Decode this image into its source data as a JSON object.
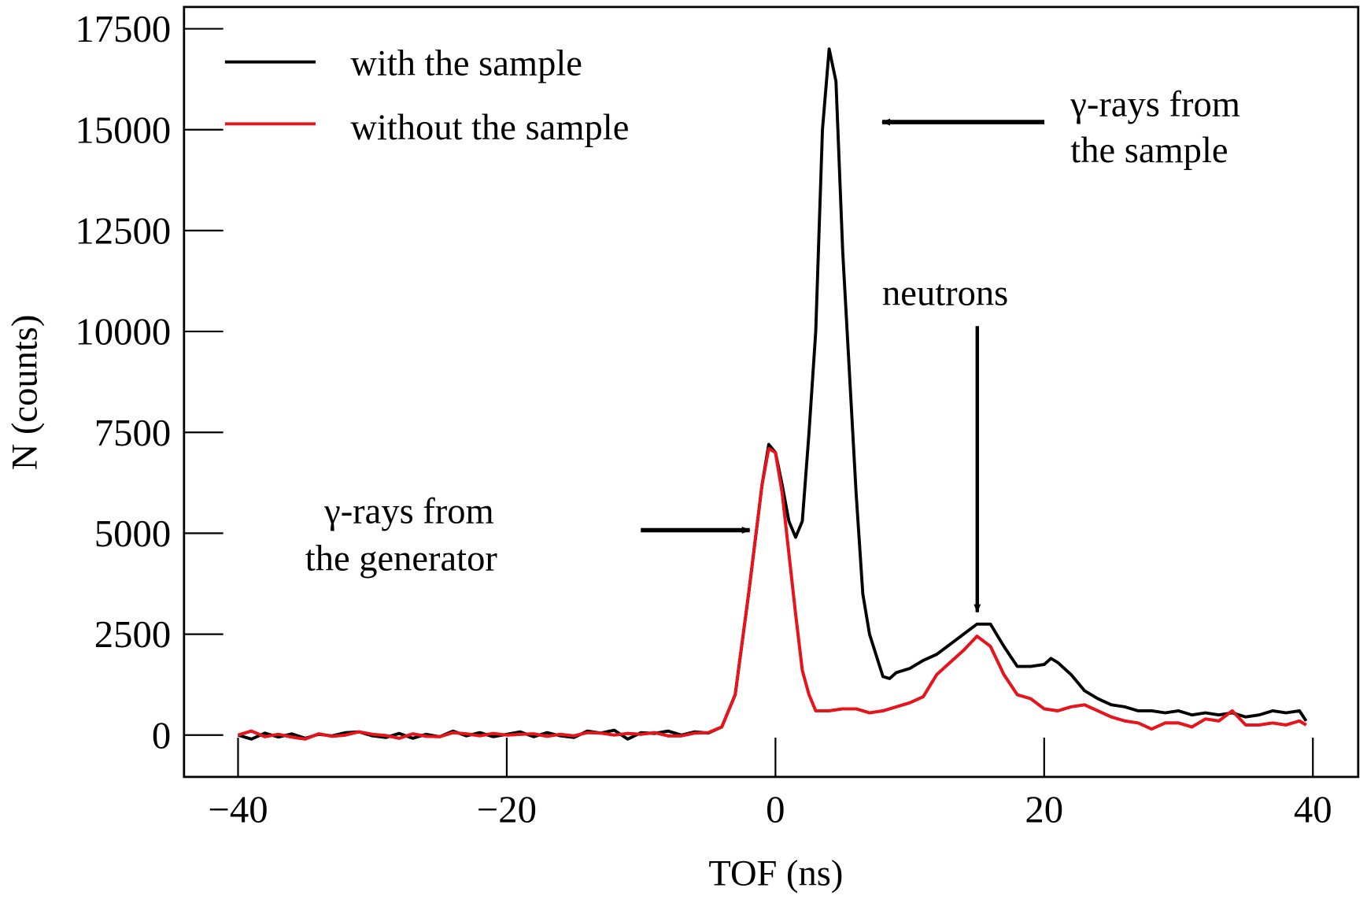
{
  "chart_data": {
    "type": "line",
    "title": "",
    "xlabel": "TOF (ns)",
    "ylabel": "N (counts)",
    "xlim": [
      -44,
      43
    ],
    "ylim": [
      -1050,
      17900
    ],
    "xticks": [
      -40,
      -20,
      0,
      20,
      40
    ],
    "xtick_labels": [
      "−40",
      "−20",
      "0",
      "20",
      "40"
    ],
    "yticks": [
      0,
      2500,
      5000,
      7500,
      10000,
      12500,
      15000,
      17500
    ],
    "ytick_labels": [
      "0",
      "2500",
      "5000",
      "7500",
      "10000",
      "12500",
      "15000",
      "17500"
    ],
    "grid": false,
    "legend_position": "top-left",
    "series": [
      {
        "name": "with the sample",
        "color": "#000000",
        "x": [
          -40,
          -39,
          -38,
          -37,
          -36,
          -35,
          -34,
          -33,
          -32,
          -31,
          -30,
          -29,
          -28,
          -27,
          -26,
          -25,
          -24,
          -23,
          -22,
          -21,
          -20,
          -19,
          -18,
          -17,
          -16,
          -15,
          -14,
          -13,
          -12,
          -11,
          -10,
          -9,
          -8,
          -7,
          -6,
          -5,
          -4,
          -3,
          -2,
          -1,
          -0.5,
          0,
          0.5,
          1,
          1.5,
          2,
          2.5,
          3,
          3.5,
          4,
          4.5,
          5,
          5.5,
          6,
          6.5,
          7,
          8,
          8.5,
          9,
          10,
          11,
          12,
          13,
          14,
          15,
          16,
          17,
          18,
          19,
          20,
          20.5,
          21,
          22,
          23,
          24,
          25,
          26,
          27,
          28,
          29,
          30,
          31,
          32,
          33,
          34,
          35,
          36,
          37,
          38,
          39,
          39.5
        ],
        "y": [
          0,
          -100,
          50,
          -50,
          30,
          -80,
          20,
          -20,
          60,
          80,
          -20,
          -60,
          40,
          -80,
          20,
          -40,
          100,
          -20,
          60,
          -40,
          20,
          80,
          -40,
          60,
          -20,
          -60,
          100,
          50,
          120,
          -100,
          60,
          40,
          100,
          0,
          80,
          50,
          200,
          1000,
          3500,
          6200,
          7200,
          7000,
          6200,
          5300,
          4900,
          5300,
          7500,
          10000,
          15000,
          17000,
          16200,
          12000,
          9000,
          6000,
          3500,
          2500,
          1450,
          1400,
          1550,
          1650,
          1850,
          2000,
          2250,
          2500,
          2750,
          2750,
          2200,
          1700,
          1700,
          1750,
          1900,
          1800,
          1500,
          1100,
          900,
          750,
          700,
          600,
          600,
          550,
          600,
          500,
          550,
          500,
          550,
          450,
          500,
          600,
          550,
          600,
          350
        ]
      },
      {
        "name": "without the sample",
        "color": "#e8141c",
        "x": [
          -40,
          -39,
          -38,
          -37,
          -36,
          -35,
          -34,
          -33,
          -32,
          -31,
          -30,
          -29,
          -28,
          -27,
          -26,
          -25,
          -24,
          -23,
          -22,
          -21,
          -20,
          -19,
          -18,
          -17,
          -16,
          -15,
          -14,
          -13,
          -12,
          -11,
          -10,
          -9,
          -8,
          -7,
          -6,
          -5,
          -4,
          -3,
          -2,
          -1,
          -0.5,
          0,
          0.5,
          1,
          1.5,
          2,
          2.5,
          3,
          4,
          5,
          6,
          7,
          8,
          9,
          10,
          11,
          12,
          13,
          14,
          15,
          16,
          17,
          18,
          19,
          20,
          21,
          22,
          23,
          24,
          25,
          26,
          27,
          28,
          29,
          30,
          31,
          32,
          33,
          34,
          35,
          36,
          37,
          38,
          39,
          39.5
        ],
        "y": [
          0,
          100,
          -40,
          20,
          -50,
          -100,
          30,
          -30,
          0,
          80,
          20,
          -10,
          -80,
          30,
          -30,
          -40,
          60,
          30,
          -20,
          40,
          0,
          20,
          30,
          -30,
          20,
          -20,
          60,
          50,
          0,
          40,
          20,
          60,
          -20,
          -20,
          50,
          60,
          200,
          1000,
          3500,
          6200,
          7100,
          7000,
          6000,
          4500,
          3000,
          1600,
          1000,
          600,
          600,
          650,
          650,
          550,
          600,
          700,
          800,
          950,
          1500,
          1800,
          2100,
          2450,
          2200,
          1500,
          1000,
          900,
          650,
          600,
          700,
          750,
          600,
          450,
          350,
          300,
          150,
          300,
          300,
          200,
          400,
          350,
          600,
          250,
          250,
          300,
          250,
          350,
          250
        ]
      }
    ],
    "annotations": [
      {
        "text_lines": [
          "γ-rays from",
          "the sample"
        ],
        "arrow": "left",
        "target_x": 4,
        "target_y": 15000
      },
      {
        "text_lines": [
          "neutrons"
        ],
        "arrow": "down",
        "target_x": 15,
        "target_y": 2900
      },
      {
        "text_lines": [
          "γ-rays from",
          "the generator"
        ],
        "arrow": "right",
        "target_x": -1,
        "target_y": 5000
      }
    ]
  }
}
